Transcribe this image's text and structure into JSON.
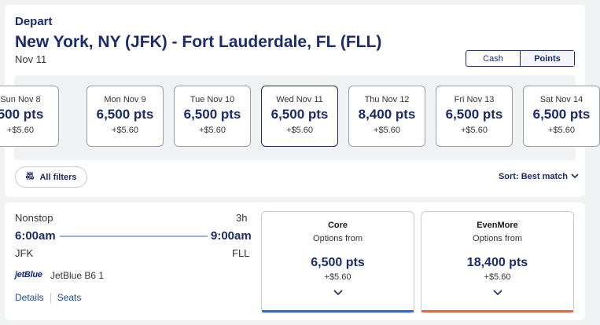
{
  "header": {
    "label": "Depart",
    "route": "New York, NY (JFK) - Fort Lauderdale, FL (FLL)",
    "date": "Nov 11"
  },
  "toggle": {
    "cash": "Cash",
    "points": "Points",
    "selected": "Points"
  },
  "dates": [
    {
      "day": "Sun Nov 8",
      "pts": "500 pts",
      "fee": "+$5.60"
    },
    {
      "day": "Mon Nov 9",
      "pts": "6,500 pts",
      "fee": "+$5.60"
    },
    {
      "day": "Tue Nov 10",
      "pts": "6,500 pts",
      "fee": "+$5.60"
    },
    {
      "day": "Wed Nov 11",
      "pts": "6,500 pts",
      "fee": "+$5.60",
      "selected": true
    },
    {
      "day": "Thu Nov 12",
      "pts": "8,400 pts",
      "fee": "+$5.60"
    },
    {
      "day": "Fri Nov 13",
      "pts": "6,500 pts",
      "fee": "+$5.60"
    },
    {
      "day": "Sat Nov 14",
      "pts": "6,500 pts",
      "fee": "+$5.60"
    }
  ],
  "controls": {
    "filters": "All filters",
    "sort": "Sort: Best match"
  },
  "flight": {
    "stops": "Nonstop",
    "duration": "3h",
    "depart_time": "6:00am",
    "arrive_time": "9:00am",
    "depart_airport": "JFK",
    "arrive_airport": "FLL",
    "airline_logo": "jetBlue",
    "airline": "JetBlue B6 1",
    "details": "Details",
    "seats": "Seats"
  },
  "fares": [
    {
      "name": "Core",
      "sub": "Options from",
      "pts": "6,500 pts",
      "fee": "+$5.60",
      "accent": "#2e6fd6"
    },
    {
      "name": "EvenMore",
      "sub": "Options from",
      "pts": "18,400 pts",
      "fee": "+$5.60",
      "accent": "#f06a2a"
    }
  ],
  "colors": {
    "brand_navy": "#1b2b6b",
    "link_blue": "#1b4fa8"
  }
}
